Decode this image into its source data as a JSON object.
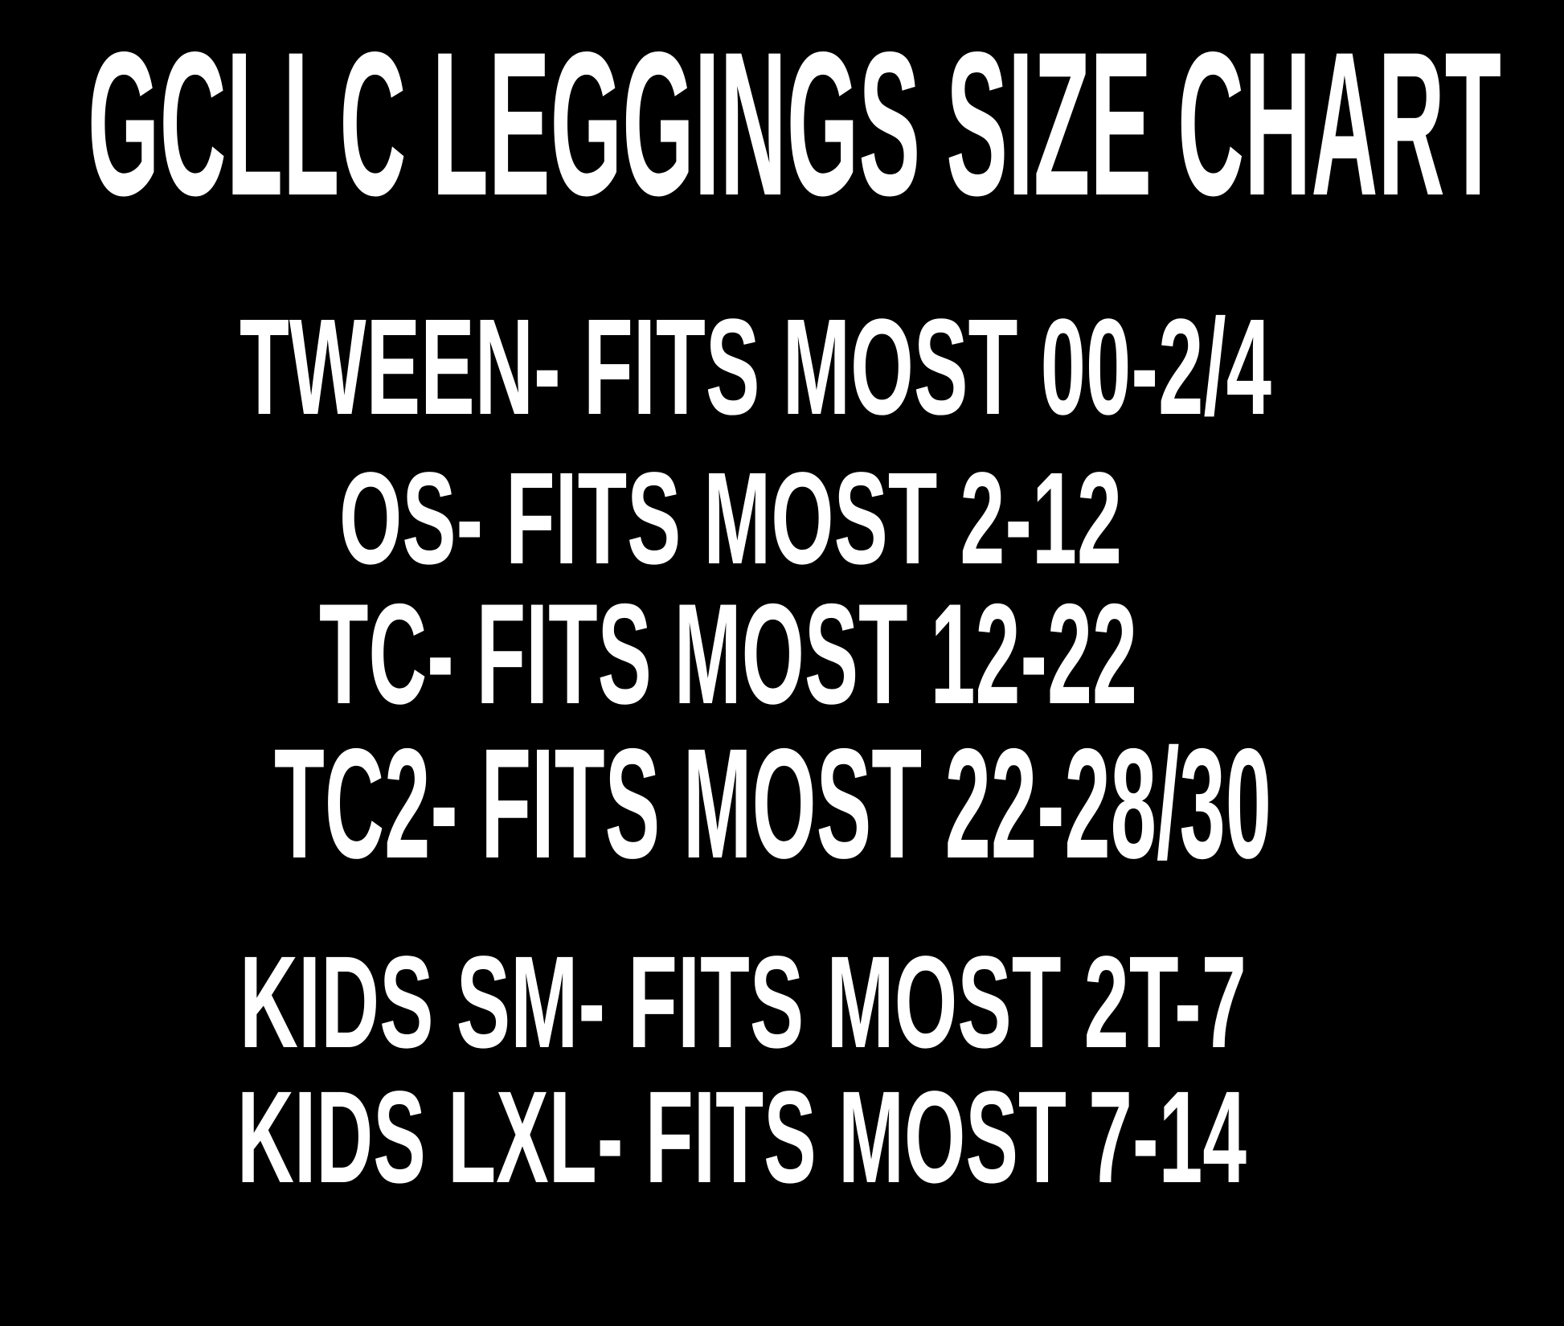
{
  "title": "GCLLC LEGGINGS SIZE CHART",
  "colors": {
    "background": "#000000",
    "text": "#ffffff"
  },
  "sizes": [
    {
      "text": "TWEEN- FITS MOST 00-2/4"
    },
    {
      "text": "OS- FITS MOST 2-12"
    },
    {
      "text": "TC- FITS MOST 12-22"
    },
    {
      "text": "TC2- FITS MOST 22-28/30"
    },
    {
      "text": "KIDS SM- FITS MOST 2T-7"
    },
    {
      "text": "KIDS LXL- FITS MOST 7-14"
    }
  ]
}
